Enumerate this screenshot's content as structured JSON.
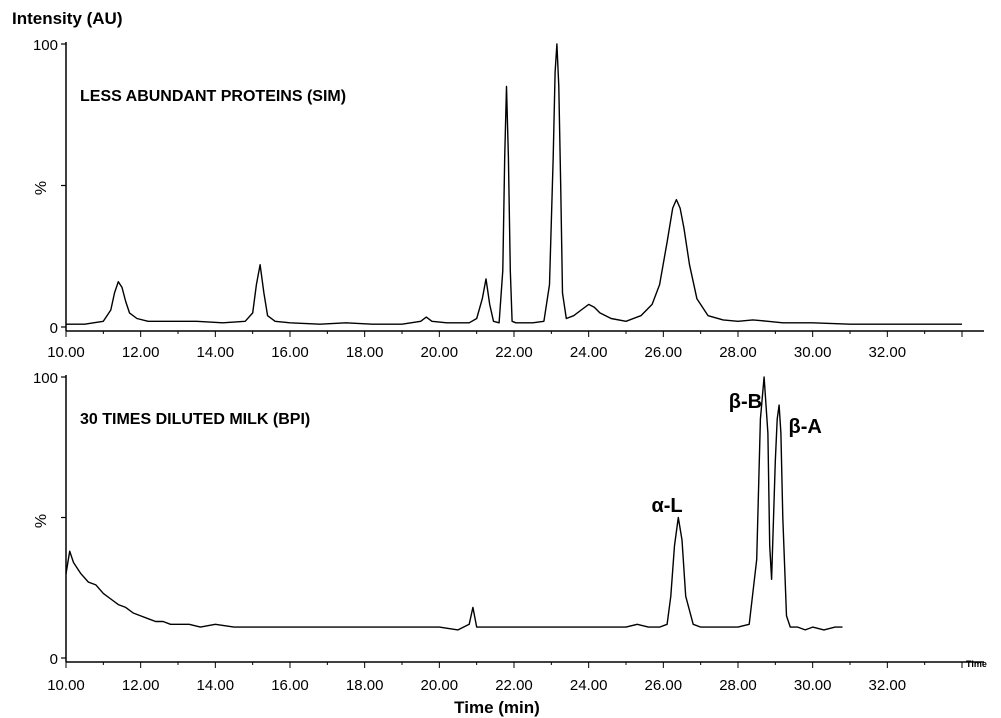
{
  "figure": {
    "y_title": "Intensity (AU)",
    "x_title": "Time (min)"
  },
  "chart_data": [
    {
      "type": "line",
      "title": "LESS ABUNDANT PROTEINS (SIM)",
      "ylabel": "%",
      "xlabel": "",
      "xlim": [
        10.0,
        34.0
      ],
      "ylim": [
        0,
        100
      ],
      "xticks": [
        "10.00",
        "12.00",
        "14.00",
        "16.00",
        "18.00",
        "20.00",
        "22.00",
        "24.00",
        "26.00",
        "28.00",
        "30.00",
        "32.00"
      ],
      "yticks": [
        "0",
        "100"
      ],
      "corner_label": "",
      "series": [
        {
          "x": [
            10.0,
            10.5,
            11.0,
            11.2,
            11.3,
            11.4,
            11.5,
            11.6,
            11.7,
            11.9,
            12.2,
            12.8,
            13.5,
            14.2,
            14.8,
            15.0,
            15.1,
            15.2,
            15.3,
            15.4,
            15.6,
            16.0,
            16.8,
            17.5,
            18.2,
            19.0,
            19.5,
            19.65,
            19.8,
            20.2,
            20.8,
            21.0,
            21.15,
            21.25,
            21.35,
            21.45,
            21.6,
            21.7,
            21.75,
            21.8,
            21.85,
            21.9,
            21.95,
            22.05,
            22.2,
            22.5,
            22.8,
            22.95,
            23.05,
            23.1,
            23.15,
            23.2,
            23.25,
            23.3,
            23.4,
            23.6,
            23.8,
            24.0,
            24.15,
            24.3,
            24.6,
            25.0,
            25.4,
            25.7,
            25.9,
            26.1,
            26.25,
            26.35,
            26.45,
            26.55,
            26.7,
            26.9,
            27.2,
            27.6,
            28.0,
            28.4,
            28.8,
            29.2,
            30.0,
            31.0,
            32.0,
            33.0,
            34.0
          ],
          "y": [
            1,
            1,
            2,
            6,
            12,
            16,
            14,
            9,
            5,
            3,
            2,
            2,
            2,
            1.5,
            2,
            5,
            15,
            22,
            12,
            4,
            2,
            1.5,
            1,
            1.5,
            1,
            1,
            2,
            3.5,
            2,
            1.5,
            1.5,
            3,
            10,
            17,
            8,
            2,
            1.5,
            20,
            60,
            85,
            60,
            20,
            2,
            1.5,
            1.5,
            1.5,
            2,
            15,
            60,
            90,
            100,
            85,
            50,
            12,
            3,
            4,
            6,
            8,
            7,
            5,
            3,
            2,
            4,
            8,
            15,
            30,
            42,
            45,
            42,
            35,
            22,
            10,
            4,
            2.5,
            2,
            2.5,
            2,
            1.5,
            1.5,
            1,
            1,
            1,
            1
          ]
        }
      ]
    },
    {
      "type": "line",
      "title": "30 TIMES DILUTED MILK (BPI)",
      "ylabel": "%",
      "xlabel": "Time (min)",
      "xlim": [
        10.0,
        34.0
      ],
      "ylim": [
        0,
        100
      ],
      "xticks": [
        "10.00",
        "12.00",
        "14.00",
        "16.00",
        "18.00",
        "20.00",
        "22.00",
        "24.00",
        "26.00",
        "28.00",
        "30.00",
        "32.00"
      ],
      "yticks": [
        "0",
        "100"
      ],
      "corner_label": "Time",
      "annotations": [
        {
          "text": "α-L",
          "x": 26.1,
          "y": 52
        },
        {
          "text": "β-B",
          "x": 28.2,
          "y": 89
        },
        {
          "text": "β-A",
          "x": 29.8,
          "y": 80
        }
      ],
      "series": [
        {
          "x": [
            10.0,
            10.1,
            10.2,
            10.4,
            10.6,
            10.8,
            11.0,
            11.2,
            11.4,
            11.6,
            11.8,
            12.0,
            12.2,
            12.4,
            12.6,
            12.8,
            13.0,
            13.3,
            13.6,
            14.0,
            14.5,
            15.0,
            15.5,
            16.0,
            16.5,
            17.0,
            17.5,
            18.0,
            18.5,
            19.0,
            19.5,
            20.0,
            20.5,
            20.8,
            20.9,
            21.0,
            21.1,
            21.3,
            21.8,
            22.5,
            23.0,
            23.5,
            24.0,
            24.5,
            25.0,
            25.3,
            25.6,
            25.9,
            26.1,
            26.2,
            26.3,
            26.4,
            26.5,
            26.6,
            26.8,
            27.0,
            27.5,
            28.0,
            28.3,
            28.5,
            28.6,
            28.7,
            28.8,
            28.85,
            28.9,
            29.0,
            29.05,
            29.1,
            29.15,
            29.2,
            29.3,
            29.4,
            29.6,
            29.8,
            30.0,
            30.3,
            30.6,
            30.8
          ],
          "y": [
            30,
            38,
            34,
            30,
            27,
            26,
            23,
            21,
            19,
            18,
            16,
            15,
            14,
            13,
            13,
            12,
            12,
            12,
            11,
            12,
            11,
            11,
            11,
            11,
            11,
            11,
            11,
            11,
            11,
            11,
            11,
            11,
            10,
            12,
            18,
            11,
            11,
            11,
            11,
            11,
            11,
            11,
            11,
            11,
            11,
            12,
            11,
            11,
            12,
            22,
            40,
            50,
            42,
            22,
            12,
            11,
            11,
            11,
            12,
            35,
            85,
            100,
            80,
            40,
            28,
            70,
            85,
            90,
            80,
            50,
            15,
            11,
            11,
            10,
            11,
            10,
            11,
            11
          ]
        }
      ]
    }
  ]
}
